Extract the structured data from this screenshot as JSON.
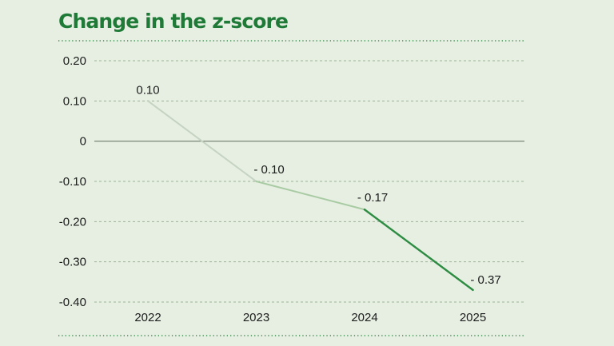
{
  "chart_data": {
    "type": "line",
    "title": "Change in the z-score",
    "xlabel": "",
    "ylabel": "",
    "x": [
      "2022",
      "2023",
      "2024",
      "2025"
    ],
    "values": [
      0.1,
      -0.1,
      -0.17,
      -0.37
    ],
    "data_labels": [
      "0.10",
      "- 0.10",
      "- 0.17",
      "- 0.37"
    ],
    "y_ticks": [
      {
        "value": 0.2,
        "label": "0.20"
      },
      {
        "value": 0.1,
        "label": "0.10"
      },
      {
        "value": 0,
        "label": "0"
      },
      {
        "value": -0.1,
        "label": "-0.10"
      },
      {
        "value": -0.2,
        "label": "-0.20"
      },
      {
        "value": -0.3,
        "label": "-0.30"
      },
      {
        "value": -0.4,
        "label": "-0.40"
      }
    ],
    "ylim": [
      -0.4,
      0.2
    ],
    "grid": true,
    "legend": "none",
    "colors": {
      "title": "#1f7a37",
      "segments": [
        "#c6d2c2",
        "#a9cba3",
        "#2e8c43"
      ],
      "grid": "#9fb09a",
      "zero_line": "#6f7a6c",
      "background": "#e6efe2"
    }
  }
}
